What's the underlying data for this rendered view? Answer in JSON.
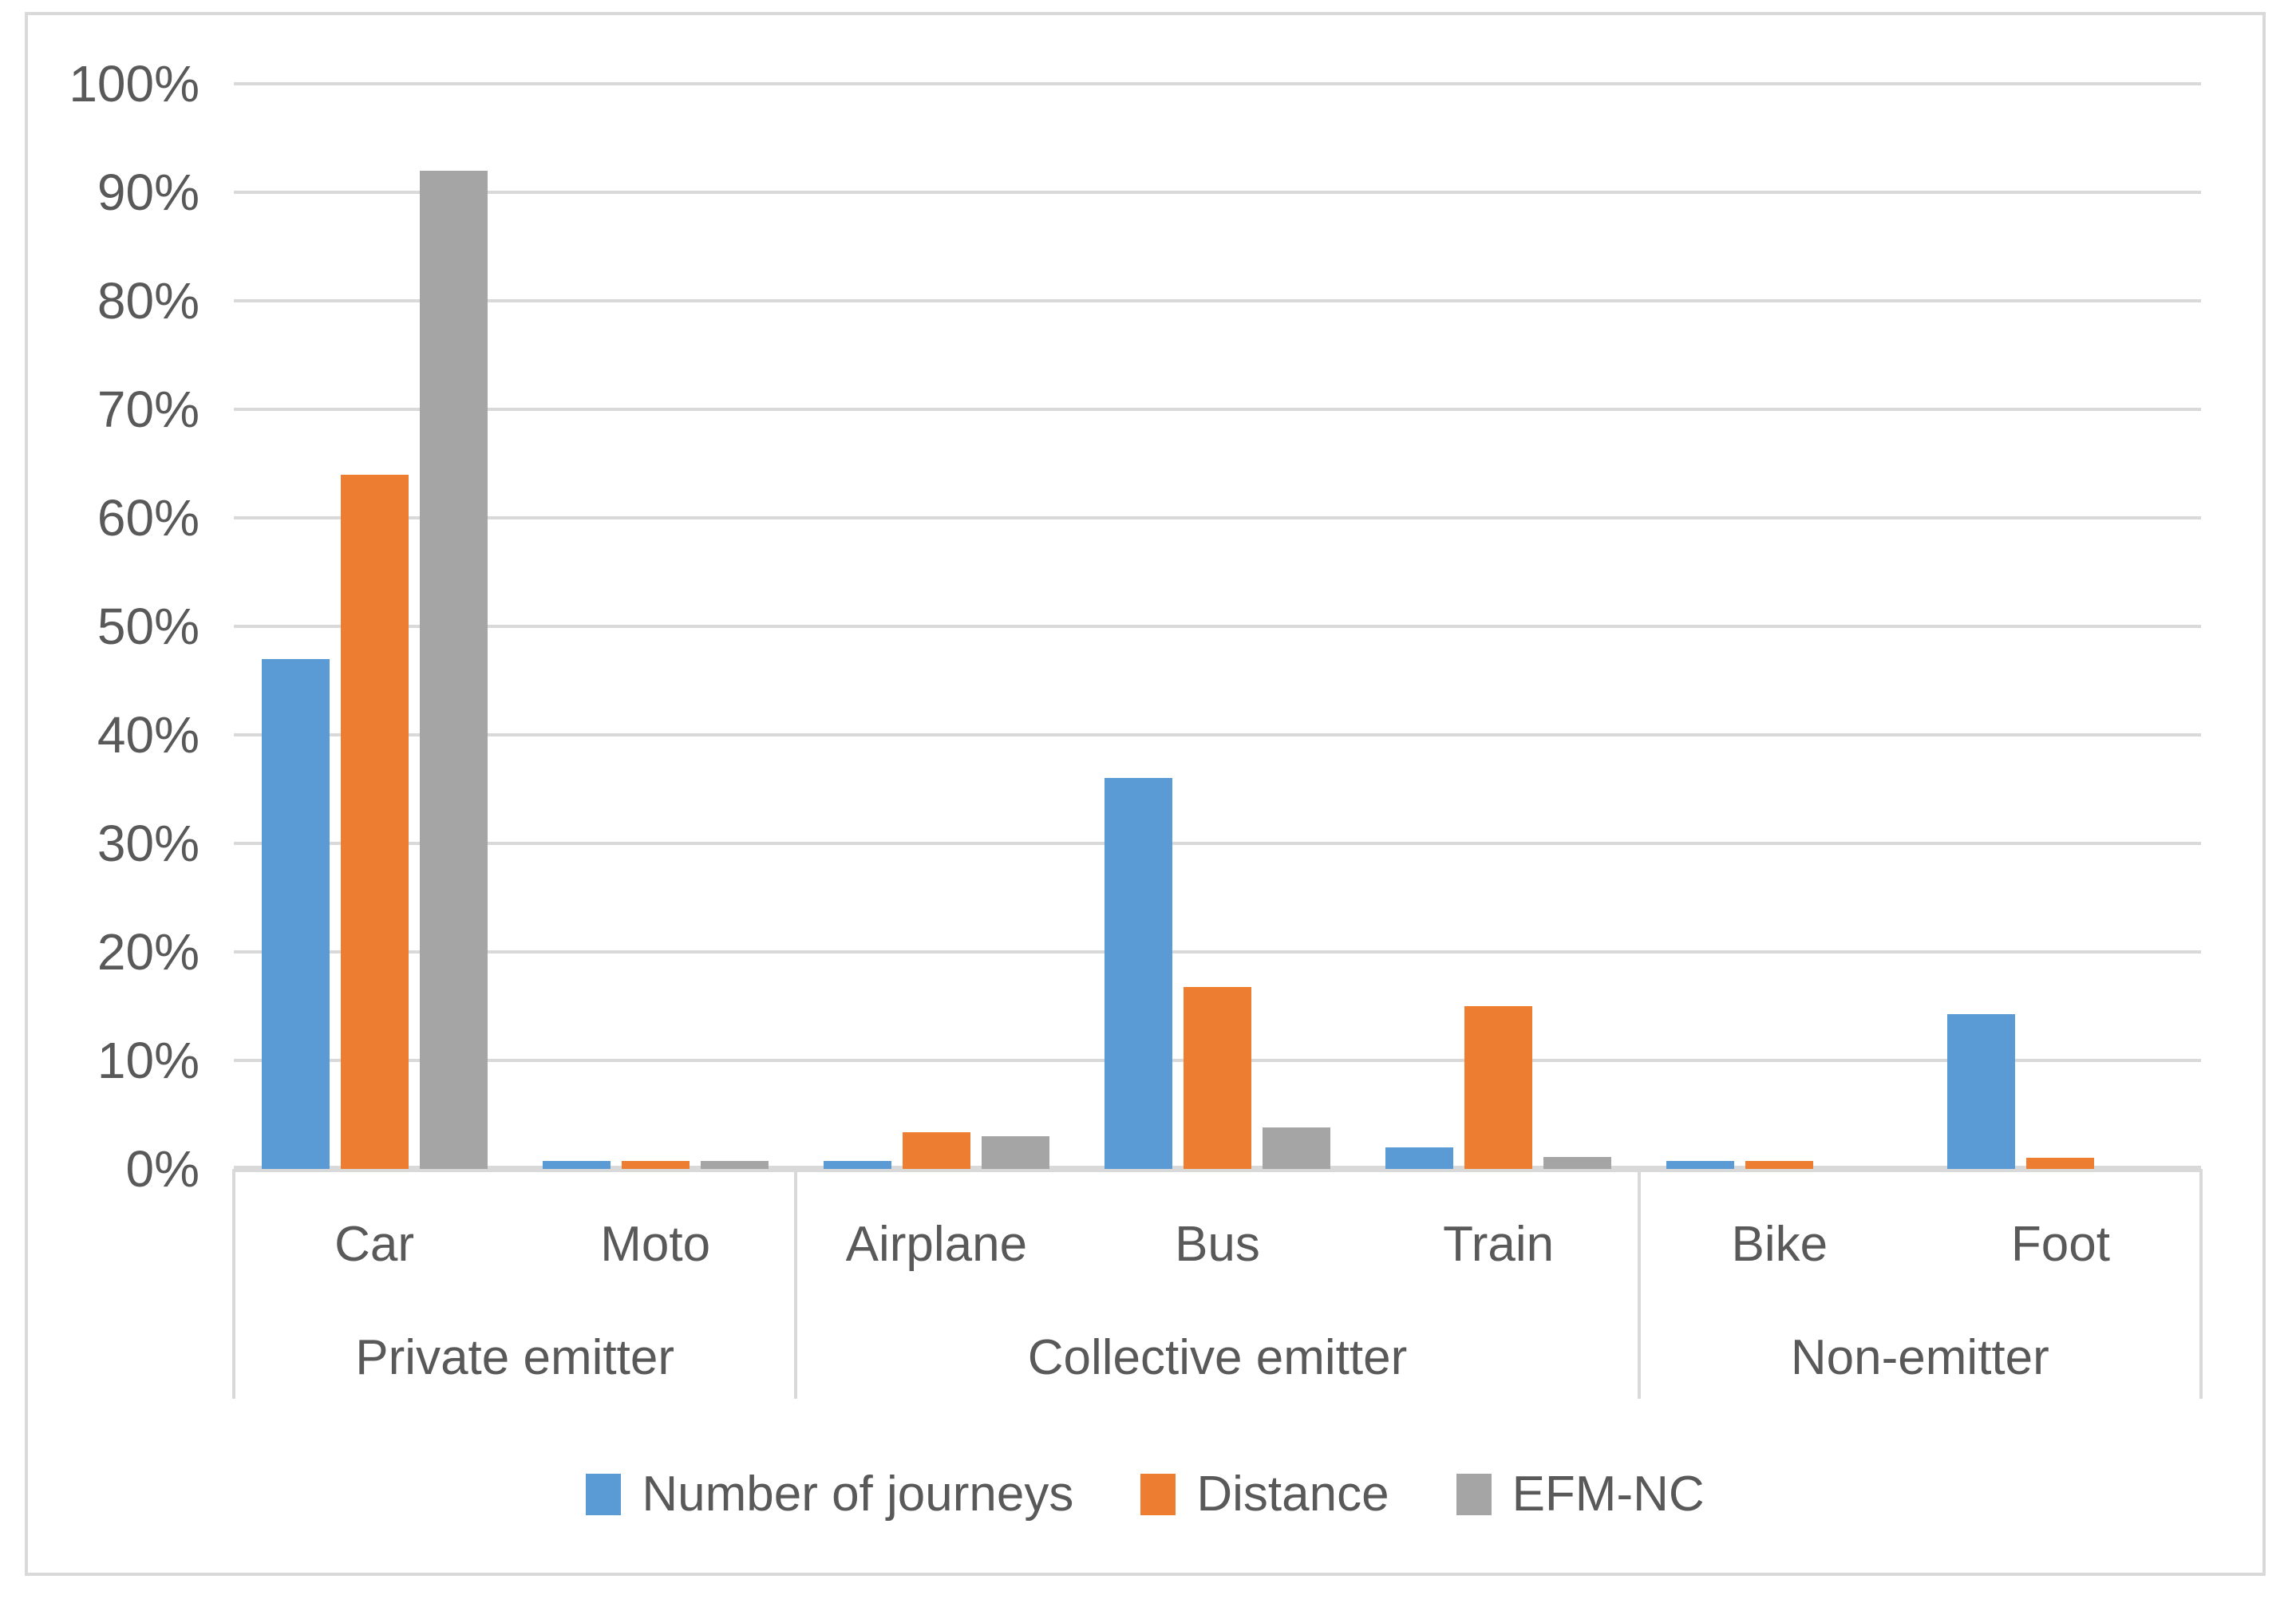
{
  "chart_data": {
    "type": "bar",
    "title": "",
    "categories": [
      "Car",
      "Moto",
      "Airplane",
      "Bus",
      "Train",
      "Bike",
      "Foot"
    ],
    "category_groups": [
      {
        "label": "Private emitter",
        "span": 2
      },
      {
        "label": "Collective emitter",
        "span": 3
      },
      {
        "label": "Non-emitter",
        "span": 2
      }
    ],
    "series": [
      {
        "name": "Number of journeys",
        "color": "#5B9BD5",
        "values": [
          47,
          0.7,
          0.7,
          36,
          2,
          0.7,
          14.3
        ]
      },
      {
        "name": "Distance",
        "color": "#ED7D31",
        "values": [
          64,
          0.7,
          3.4,
          16.8,
          15,
          0.7,
          1
        ]
      },
      {
        "name": "EFM-NC",
        "color": "#A5A5A5",
        "values": [
          92,
          0.7,
          3,
          3.8,
          1.1,
          0,
          0
        ]
      }
    ],
    "y_axis": {
      "min": 0,
      "max": 100,
      "step": 10,
      "tick_labels": [
        "0%",
        "10%",
        "20%",
        "30%",
        "40%",
        "50%",
        "60%",
        "70%",
        "80%",
        "90%",
        "100%"
      ]
    },
    "grid": true,
    "legend_position": "bottom"
  },
  "style": {
    "series_blue": "#5B9BD5",
    "series_orange": "#ED7D31",
    "series_gray": "#A5A5A5",
    "gridline_color": "#D9D9D9",
    "frame_color": "#D9D9D9",
    "text_color": "#595959",
    "background": "#FFFFFF"
  }
}
